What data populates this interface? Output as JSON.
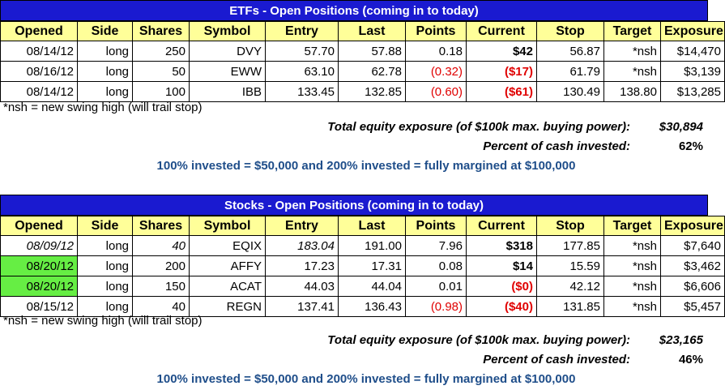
{
  "etf": {
    "title": "ETFs - Open Positions (coming in to today)",
    "headers": [
      "Opened",
      "Side",
      "Shares",
      "Symbol",
      "Entry",
      "Last",
      "Points",
      "Current",
      "Stop",
      "Target",
      "Exposure"
    ],
    "rows": [
      {
        "opened": "08/14/12",
        "side": "long",
        "shares": "250",
        "symbol": "DVY",
        "entry": "57.70",
        "last": "57.88",
        "points": "0.18",
        "current": "$42",
        "stop": "56.87",
        "target": "*nsh",
        "exposure": "$14,470"
      },
      {
        "opened": "08/16/12",
        "side": "long",
        "shares": "50",
        "symbol": "EWW",
        "entry": "63.10",
        "last": "62.78",
        "points": "(0.32)",
        "current": "($17)",
        "stop": "61.79",
        "target": "*nsh",
        "exposure": "$3,139"
      },
      {
        "opened": "08/14/12",
        "side": "long",
        "shares": "100",
        "symbol": "IBB",
        "entry": "133.45",
        "last": "132.85",
        "points": "(0.60)",
        "current": "($61)",
        "stop": "130.49",
        "target": "138.80",
        "exposure": "$13,285"
      }
    ],
    "note": "*nsh = new swing high (will trail stop)",
    "exposure_label": "Total equity exposure (of $100k max. buying power):",
    "exposure_value": "$30,894",
    "percent_label": "Percent of cash invested:",
    "percent_value": "62%",
    "invest_note": "100% invested = $50,000 and 200% invested = fully margined at $100,000"
  },
  "stocks": {
    "title": "Stocks - Open Positions (coming in to today)",
    "headers": [
      "Opened",
      "Side",
      "Shares",
      "Symbol",
      "Entry",
      "Last",
      "Points",
      "Current",
      "Stop",
      "Target",
      "Exposure"
    ],
    "rows": [
      {
        "opened": "08/09/12",
        "side": "long",
        "shares": "40",
        "symbol": "EQIX",
        "entry": "183.04",
        "last": "191.00",
        "points": "7.96",
        "current": "$318",
        "stop": "177.85",
        "target": "*nsh",
        "exposure": "$7,640"
      },
      {
        "opened": "08/20/12",
        "side": "long",
        "shares": "200",
        "symbol": "AFFY",
        "entry": "17.23",
        "last": "17.31",
        "points": "0.08",
        "current": "$14",
        "stop": "15.59",
        "target": "*nsh",
        "exposure": "$3,462"
      },
      {
        "opened": "08/20/12",
        "side": "long",
        "shares": "150",
        "symbol": "ACAT",
        "entry": "44.03",
        "last": "44.04",
        "points": "0.01",
        "current": "($0)",
        "stop": "42.12",
        "target": "*nsh",
        "exposure": "$6,606"
      },
      {
        "opened": "08/15/12",
        "side": "long",
        "shares": "40",
        "symbol": "REGN",
        "entry": "137.41",
        "last": "136.43",
        "points": "(0.98)",
        "current": "($40)",
        "stop": "131.85",
        "target": "*nsh",
        "exposure": "$5,457"
      }
    ],
    "note": "*nsh = new swing high (will trail stop)",
    "exposure_label": "Total equity exposure (of $100k max. buying power):",
    "exposure_value": "$23,165",
    "percent_label": "Percent of cash invested:",
    "percent_value": "46%",
    "invest_note": "100% invested = $50,000 and 200% invested = fully margined at $100,000"
  },
  "colors": {
    "title_bg": "#1a1ad0",
    "header_bg": "#ffff99",
    "negative": "#e00000",
    "highlight": "#66ee44",
    "note_blue": "#1f4e8a"
  }
}
